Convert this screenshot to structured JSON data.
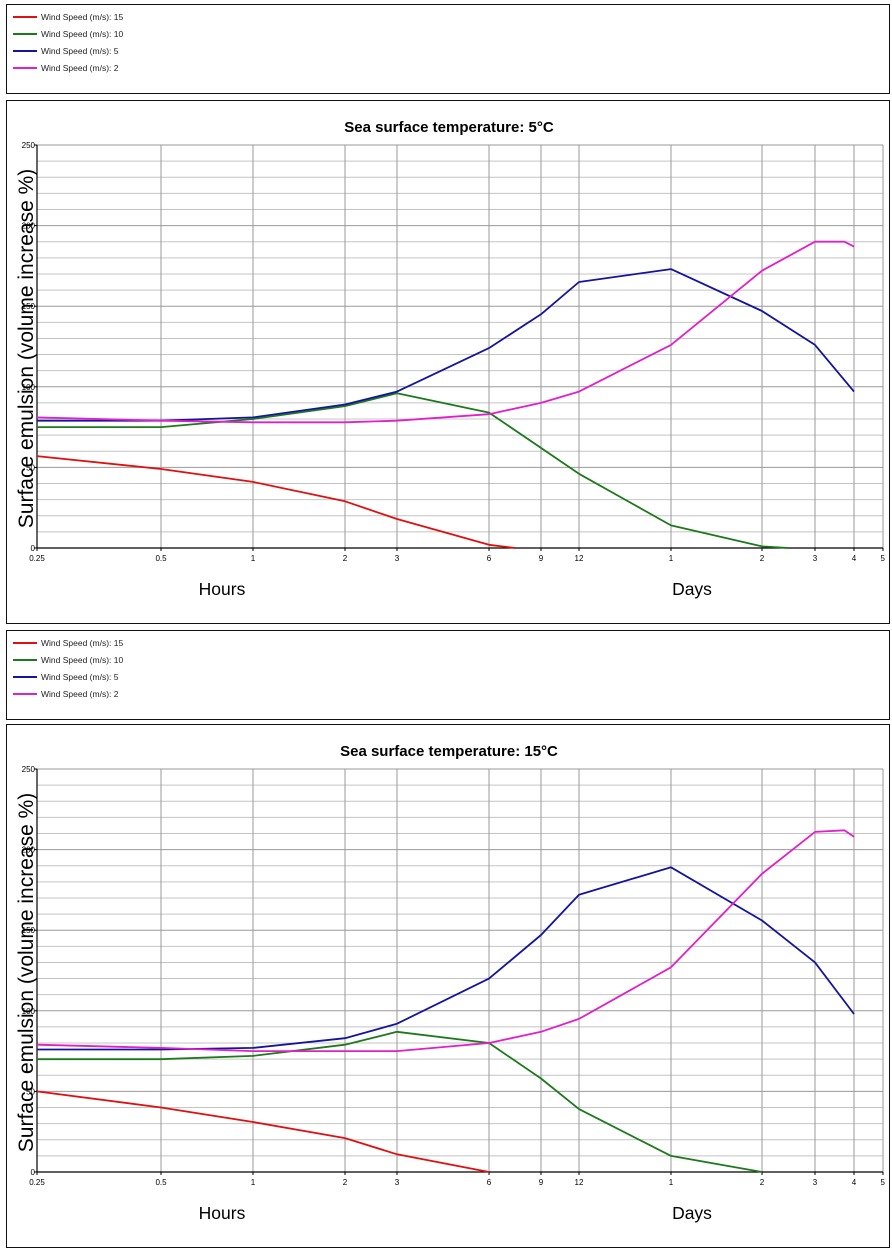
{
  "series_colors": {
    "15": "#e01010",
    "10": "#1c7a1c",
    "5": "#14149c",
    "2": "#e020c8"
  },
  "legend": [
    {
      "label": "Wind Speed (m/s): 15",
      "color": "#e01010"
    },
    {
      "label": "Wind Speed (m/s): 10",
      "color": "#1c7a1c"
    },
    {
      "label": "Wind Speed (m/s): 5",
      "color": "#14149c"
    },
    {
      "label": "Wind Speed (m/s): 2",
      "color": "#e020c8"
    }
  ],
  "chart_data": [
    {
      "type": "line",
      "title": "Sea surface temperature: 5°C",
      "ylabel": "Surface emulsion (volume increase %)",
      "x_group_labels": [
        "Hours",
        "Days"
      ],
      "x_ticks": [
        "0.25",
        "0.5",
        "1",
        "2",
        "3",
        "6",
        "9",
        "12",
        "1",
        "2",
        "3",
        "4",
        "5"
      ],
      "y_ticks": [
        "0",
        "50",
        "100",
        "150",
        "200",
        "250"
      ],
      "ylim": [
        0,
        250
      ],
      "grid": true,
      "series": [
        {
          "name": "Wind Speed (m/s): 15",
          "color": "#e01010",
          "points": [
            [
              0,
              57
            ],
            [
              1,
              49
            ],
            [
              2,
              41
            ],
            [
              3,
              29
            ],
            [
              4,
              18
            ],
            [
              5,
              2
            ],
            [
              5.5,
              0
            ]
          ]
        },
        {
          "name": "Wind Speed (m/s): 10",
          "color": "#1c7a1c",
          "points": [
            [
              0,
              75
            ],
            [
              1,
              75
            ],
            [
              2,
              80
            ],
            [
              3,
              88
            ],
            [
              4,
              96
            ],
            [
              5,
              84
            ],
            [
              7,
              46
            ],
            [
              8,
              14
            ],
            [
              9,
              1
            ],
            [
              9.5,
              0
            ]
          ]
        },
        {
          "name": "Wind Speed (m/s): 5",
          "color": "#14149c",
          "points": [
            [
              0,
              79
            ],
            [
              1,
              79
            ],
            [
              2,
              81
            ],
            [
              3,
              89
            ],
            [
              4,
              97
            ],
            [
              5,
              124
            ],
            [
              6,
              145
            ],
            [
              7,
              165
            ],
            [
              8,
              173
            ],
            [
              9,
              147
            ],
            [
              10,
              126
            ],
            [
              11,
              97
            ]
          ]
        },
        {
          "name": "Wind Speed (m/s): 2",
          "color": "#e020c8",
          "points": [
            [
              0,
              81
            ],
            [
              1,
              79
            ],
            [
              2,
              78
            ],
            [
              3,
              78
            ],
            [
              4,
              79
            ],
            [
              5,
              83
            ],
            [
              6,
              90
            ],
            [
              7,
              97
            ],
            [
              8,
              126
            ],
            [
              9,
              172
            ],
            [
              10,
              190
            ],
            [
              10.75,
              190
            ],
            [
              11,
              187
            ]
          ]
        }
      ]
    },
    {
      "type": "line",
      "title": "Sea surface temperature: 15°C",
      "ylabel": "Surface emulsion (volume increase %)",
      "x_group_labels": [
        "Hours",
        "Days"
      ],
      "x_ticks": [
        "0.25",
        "0.5",
        "1",
        "2",
        "3",
        "6",
        "9",
        "12",
        "1",
        "2",
        "3",
        "4",
        "5"
      ],
      "y_ticks": [
        "0",
        "50",
        "100",
        "150",
        "200",
        "250"
      ],
      "ylim": [
        0,
        250
      ],
      "grid": true,
      "series": [
        {
          "name": "Wind Speed (m/s): 15",
          "color": "#e01010",
          "points": [
            [
              0,
              50
            ],
            [
              1,
              40
            ],
            [
              2,
              31
            ],
            [
              3,
              21
            ],
            [
              4,
              11
            ],
            [
              5,
              0
            ]
          ]
        },
        {
          "name": "Wind Speed (m/s): 10",
          "color": "#1c7a1c",
          "points": [
            [
              0,
              70
            ],
            [
              1,
              70
            ],
            [
              2,
              72
            ],
            [
              3,
              79
            ],
            [
              4,
              87
            ],
            [
              5,
              80
            ],
            [
              6,
              58
            ],
            [
              7,
              39
            ],
            [
              8,
              10
            ],
            [
              9,
              0
            ]
          ]
        },
        {
          "name": "Wind Speed (m/s): 5",
          "color": "#14149c",
          "points": [
            [
              0,
              76
            ],
            [
              1,
              76
            ],
            [
              2,
              77
            ],
            [
              3,
              83
            ],
            [
              4,
              92
            ],
            [
              5,
              120
            ],
            [
              6,
              147
            ],
            [
              7,
              172
            ],
            [
              8,
              189
            ],
            [
              9,
              156
            ],
            [
              10,
              130
            ],
            [
              11,
              98
            ]
          ]
        },
        {
          "name": "Wind Speed (m/s): 2",
          "color": "#e020c8",
          "points": [
            [
              0,
              79
            ],
            [
              1,
              77
            ],
            [
              2,
              75
            ],
            [
              3,
              75
            ],
            [
              4,
              75
            ],
            [
              5,
              80
            ],
            [
              6,
              87
            ],
            [
              7,
              95
            ],
            [
              8,
              127
            ],
            [
              9,
              185
            ],
            [
              10,
              211
            ],
            [
              10.75,
              212
            ],
            [
              11,
              208
            ]
          ]
        }
      ]
    }
  ]
}
